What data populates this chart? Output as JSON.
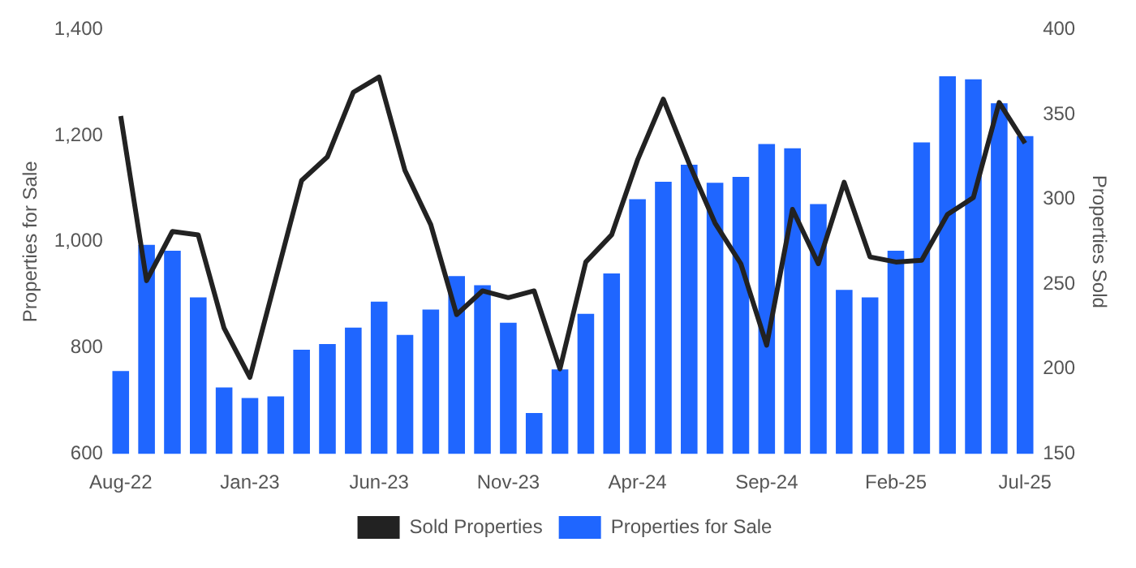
{
  "chart_data": {
    "type": "bar",
    "ylabel": "Properties for Sale",
    "y2label": "Properties Sold",
    "categories": [
      "Aug-22",
      null,
      null,
      null,
      null,
      "Jan-23",
      null,
      null,
      null,
      null,
      "Jun-23",
      null,
      null,
      null,
      null,
      "Nov-23",
      null,
      null,
      null,
      null,
      "Apr-24",
      null,
      null,
      null,
      null,
      "Sep-24",
      null,
      null,
      null,
      null,
      "Feb-25",
      null,
      null,
      null,
      null,
      "Jul-25"
    ],
    "series": [
      {
        "name": "Sold Properties",
        "type": "line",
        "axis": "y2",
        "color": "#222222",
        "values": [
          349,
          252,
          281,
          279,
          224,
          195,
          253,
          311,
          325,
          363,
          372,
          317,
          285,
          232,
          246,
          242,
          246,
          200,
          263,
          279,
          323,
          359,
          321,
          286,
          262,
          214,
          294,
          262,
          310,
          266,
          263,
          264,
          291,
          301,
          357,
          333
        ]
      },
      {
        "name": "Properties for Sale",
        "color": "#1f66ff",
        "values": [
          756,
          994,
          983,
          895,
          725,
          705,
          708,
          796,
          807,
          838,
          887,
          824,
          872,
          935,
          918,
          847,
          677,
          759,
          864,
          940,
          1080,
          1113,
          1145,
          1111,
          1122,
          1184,
          1176,
          1071,
          909,
          895,
          983,
          1187,
          1312,
          1306,
          1261,
          1199
        ]
      }
    ],
    "ylim": [
      600,
      1400
    ],
    "yticks": [
      600,
      800,
      {
        "value": 1000,
        "label": "1,000"
      },
      {
        "value": 1200,
        "label": "1,200"
      },
      {
        "value": 1400,
        "label": "1,400"
      }
    ],
    "y2lim": [
      150,
      400
    ],
    "y2ticks": [
      150,
      200,
      250,
      300,
      350,
      400
    ],
    "grid": false,
    "legend": "bottom",
    "marker": "none",
    "line_style": "solid"
  }
}
